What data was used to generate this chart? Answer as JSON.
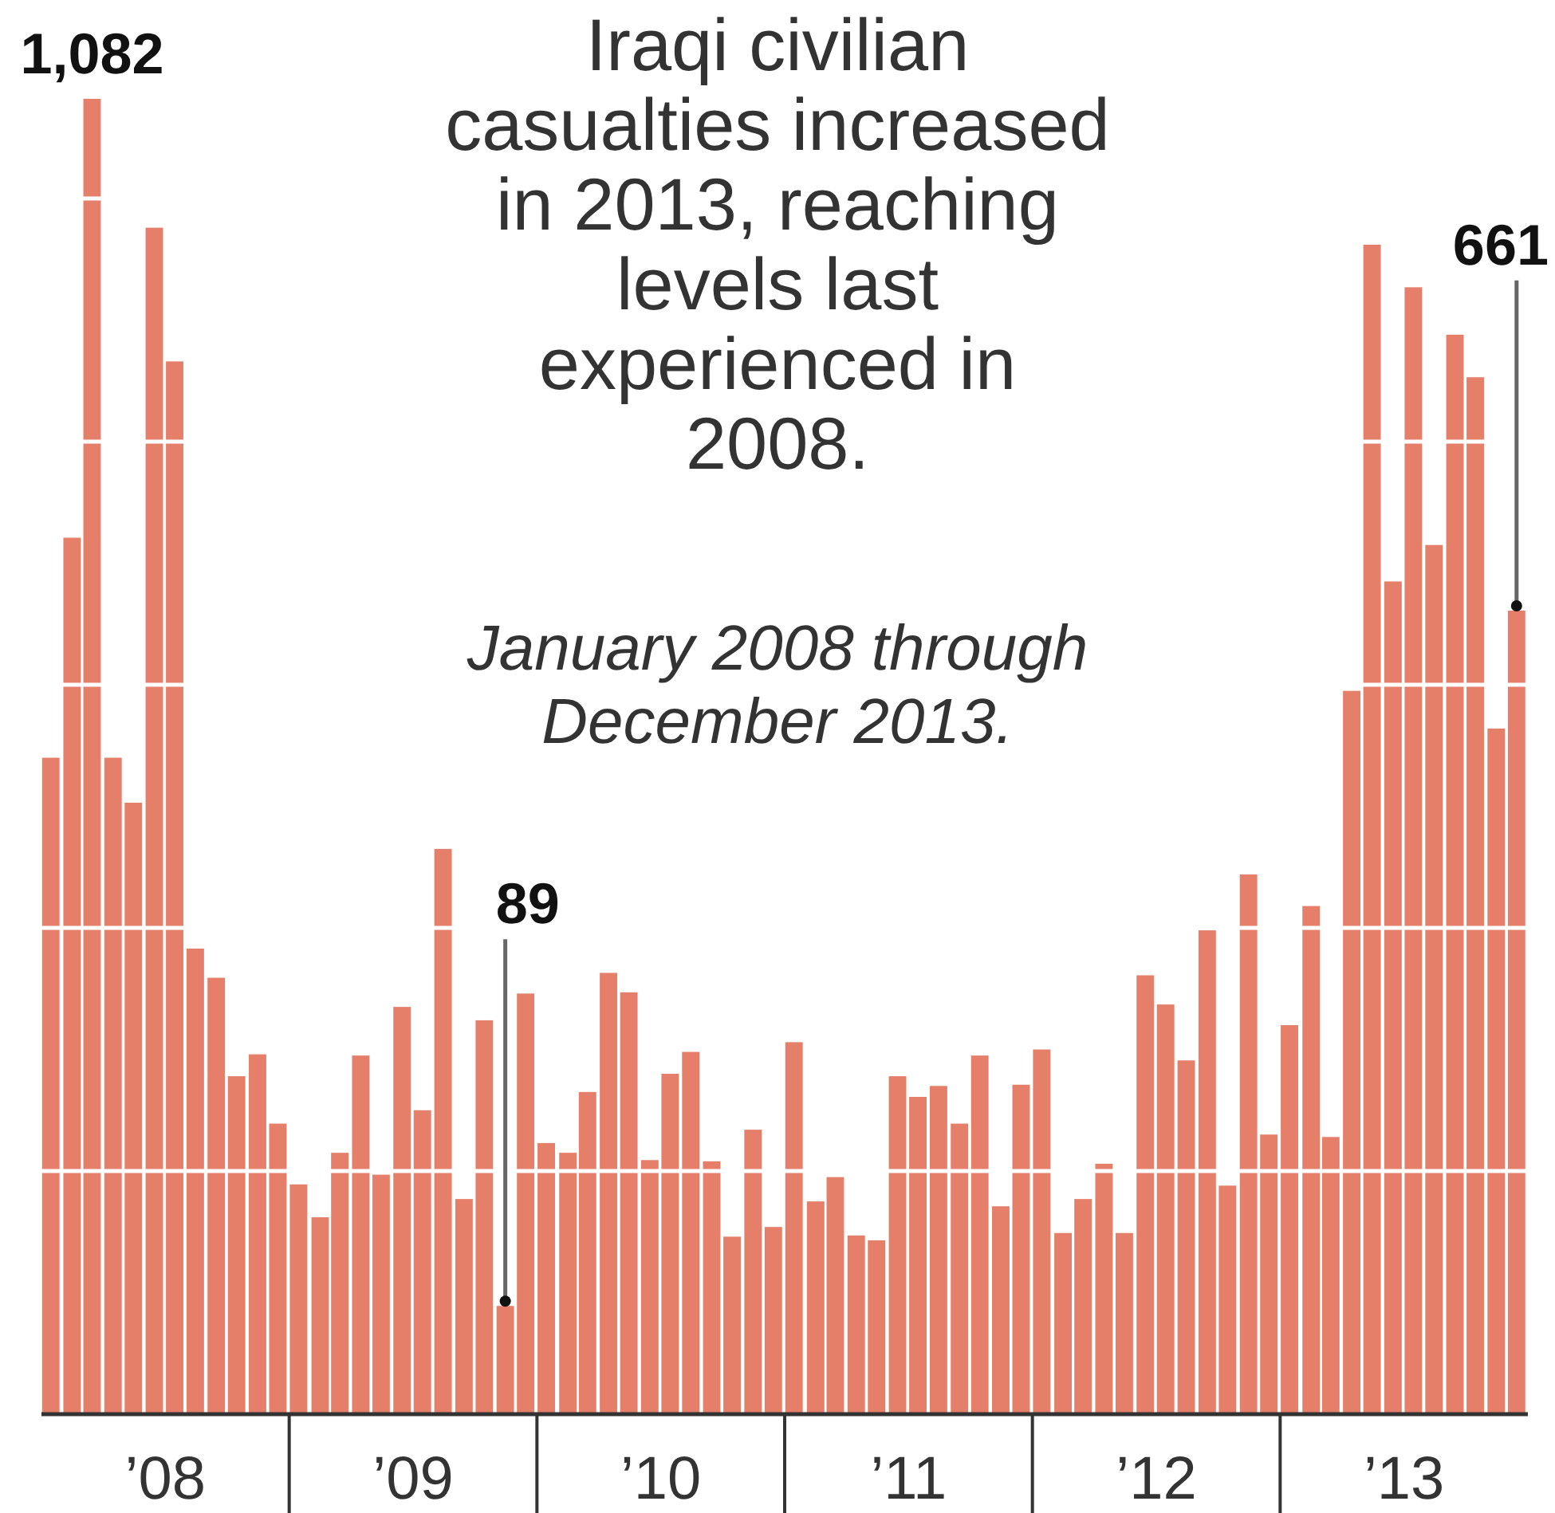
{
  "chart_data": {
    "type": "bar",
    "title": "Iraqi civilian casualties increased in 2013, reaching levels last experienced in 2008.",
    "subtitle": "January 2008 through December 2013.",
    "x": [
      "2008-01-15",
      "2008-02-15",
      "2008-03-15",
      "2008-04-15",
      "2008-05-15",
      "2008-06-15",
      "2008-07-15",
      "2008-08-15",
      "2008-09-15",
      "2008-10-15",
      "2008-11-15",
      "2008-12-15",
      "2009-01-15",
      "2009-02-15",
      "2009-03-15",
      "2009-04-15",
      "2009-05-15",
      "2009-06-15",
      "2009-07-15",
      "2009-08-15",
      "2009-09-15",
      "2009-10-15",
      "2009-11-15",
      "2009-12-15",
      "2010-01-15",
      "2010-02-15",
      "2010-03-15",
      "2010-04-15",
      "2010-05-15",
      "2010-06-15",
      "2010-07-15",
      "2010-08-15",
      "2010-09-15",
      "2010-10-15",
      "2010-11-15",
      "2010-12-15",
      "2011-01-15",
      "2011-02-15",
      "2011-03-15",
      "2011-04-15",
      "2011-05-15",
      "2011-06-15",
      "2011-07-15",
      "2011-08-15",
      "2011-09-15",
      "2011-10-15",
      "2011-11-15",
      "2011-12-15",
      "2012-01-15",
      "2012-02-15",
      "2012-03-15",
      "2012-04-15",
      "2012-05-15",
      "2012-06-15",
      "2012-07-15",
      "2012-08-15",
      "2012-09-15",
      "2012-10-15",
      "2012-11-15",
      "2012-12-15",
      "2013-01-15",
      "2013-02-15",
      "2013-03-15",
      "2013-04-15",
      "2013-05-15",
      "2013-06-15",
      "2013-07-15",
      "2013-08-15",
      "2013-09-15",
      "2013-10-15",
      "2013-11-15",
      "2013-12-15"
    ],
    "values": [
      540,
      721,
      1082,
      540,
      503,
      976,
      866,
      383,
      359,
      278,
      296,
      239,
      189,
      162,
      215,
      295,
      197,
      335,
      250,
      465,
      177,
      324,
      89,
      346,
      223,
      215,
      265,
      363,
      347,
      209,
      280,
      298,
      208,
      146,
      234,
      154,
      306,
      175,
      195,
      147,
      143,
      278,
      261,
      270,
      239,
      295,
      171,
      271,
      300,
      149,
      177,
      206,
      149,
      361,
      337,
      291,
      398,
      188,
      444,
      230,
      320,
      418,
      228,
      595,
      962,
      685,
      927,
      715,
      888,
      853,
      564,
      661
    ],
    "value_labels": [
      null,
      null,
      "1,082",
      null,
      null,
      null,
      null,
      null,
      null,
      null,
      null,
      null,
      null,
      null,
      null,
      null,
      null,
      null,
      null,
      null,
      null,
      null,
      "89",
      null,
      null,
      null,
      null,
      null,
      null,
      null,
      null,
      null,
      null,
      null,
      null,
      null,
      null,
      null,
      null,
      null,
      null,
      null,
      null,
      null,
      null,
      null,
      null,
      null,
      null,
      null,
      null,
      null,
      null,
      null,
      null,
      null,
      null,
      null,
      null,
      null,
      null,
      null,
      null,
      null,
      null,
      null,
      null,
      null,
      null,
      null,
      null,
      "661"
    ],
    "color": "#e57f69",
    "xlim": [
      "2008-01",
      "2014-01"
    ],
    "xticks": [
      {
        "value": "2008-07",
        "label": "’08"
      },
      {
        "value": "2009-01",
        "label": null
      },
      {
        "value": "2009-07",
        "label": "’09"
      },
      {
        "value": "2010-01",
        "label": null
      },
      {
        "value": "2010-07",
        "label": "’10"
      },
      {
        "value": "2011-01",
        "label": null
      },
      {
        "value": "2011-07",
        "label": "’11"
      },
      {
        "value": "2012-01",
        "label": null
      },
      {
        "value": "2012-07",
        "label": "’12"
      },
      {
        "value": "2013-01",
        "label": null
      },
      {
        "value": "2013-07",
        "label": "’13"
      }
    ],
    "yticks": [
      {
        "value": 200,
        "label": null
      },
      {
        "value": 400,
        "label": null
      },
      {
        "value": 600,
        "label": null
      },
      {
        "value": 800,
        "label": null
      },
      {
        "value": 1000,
        "label": null
      }
    ],
    "tick_labels": "x",
    "grid": "y"
  }
}
